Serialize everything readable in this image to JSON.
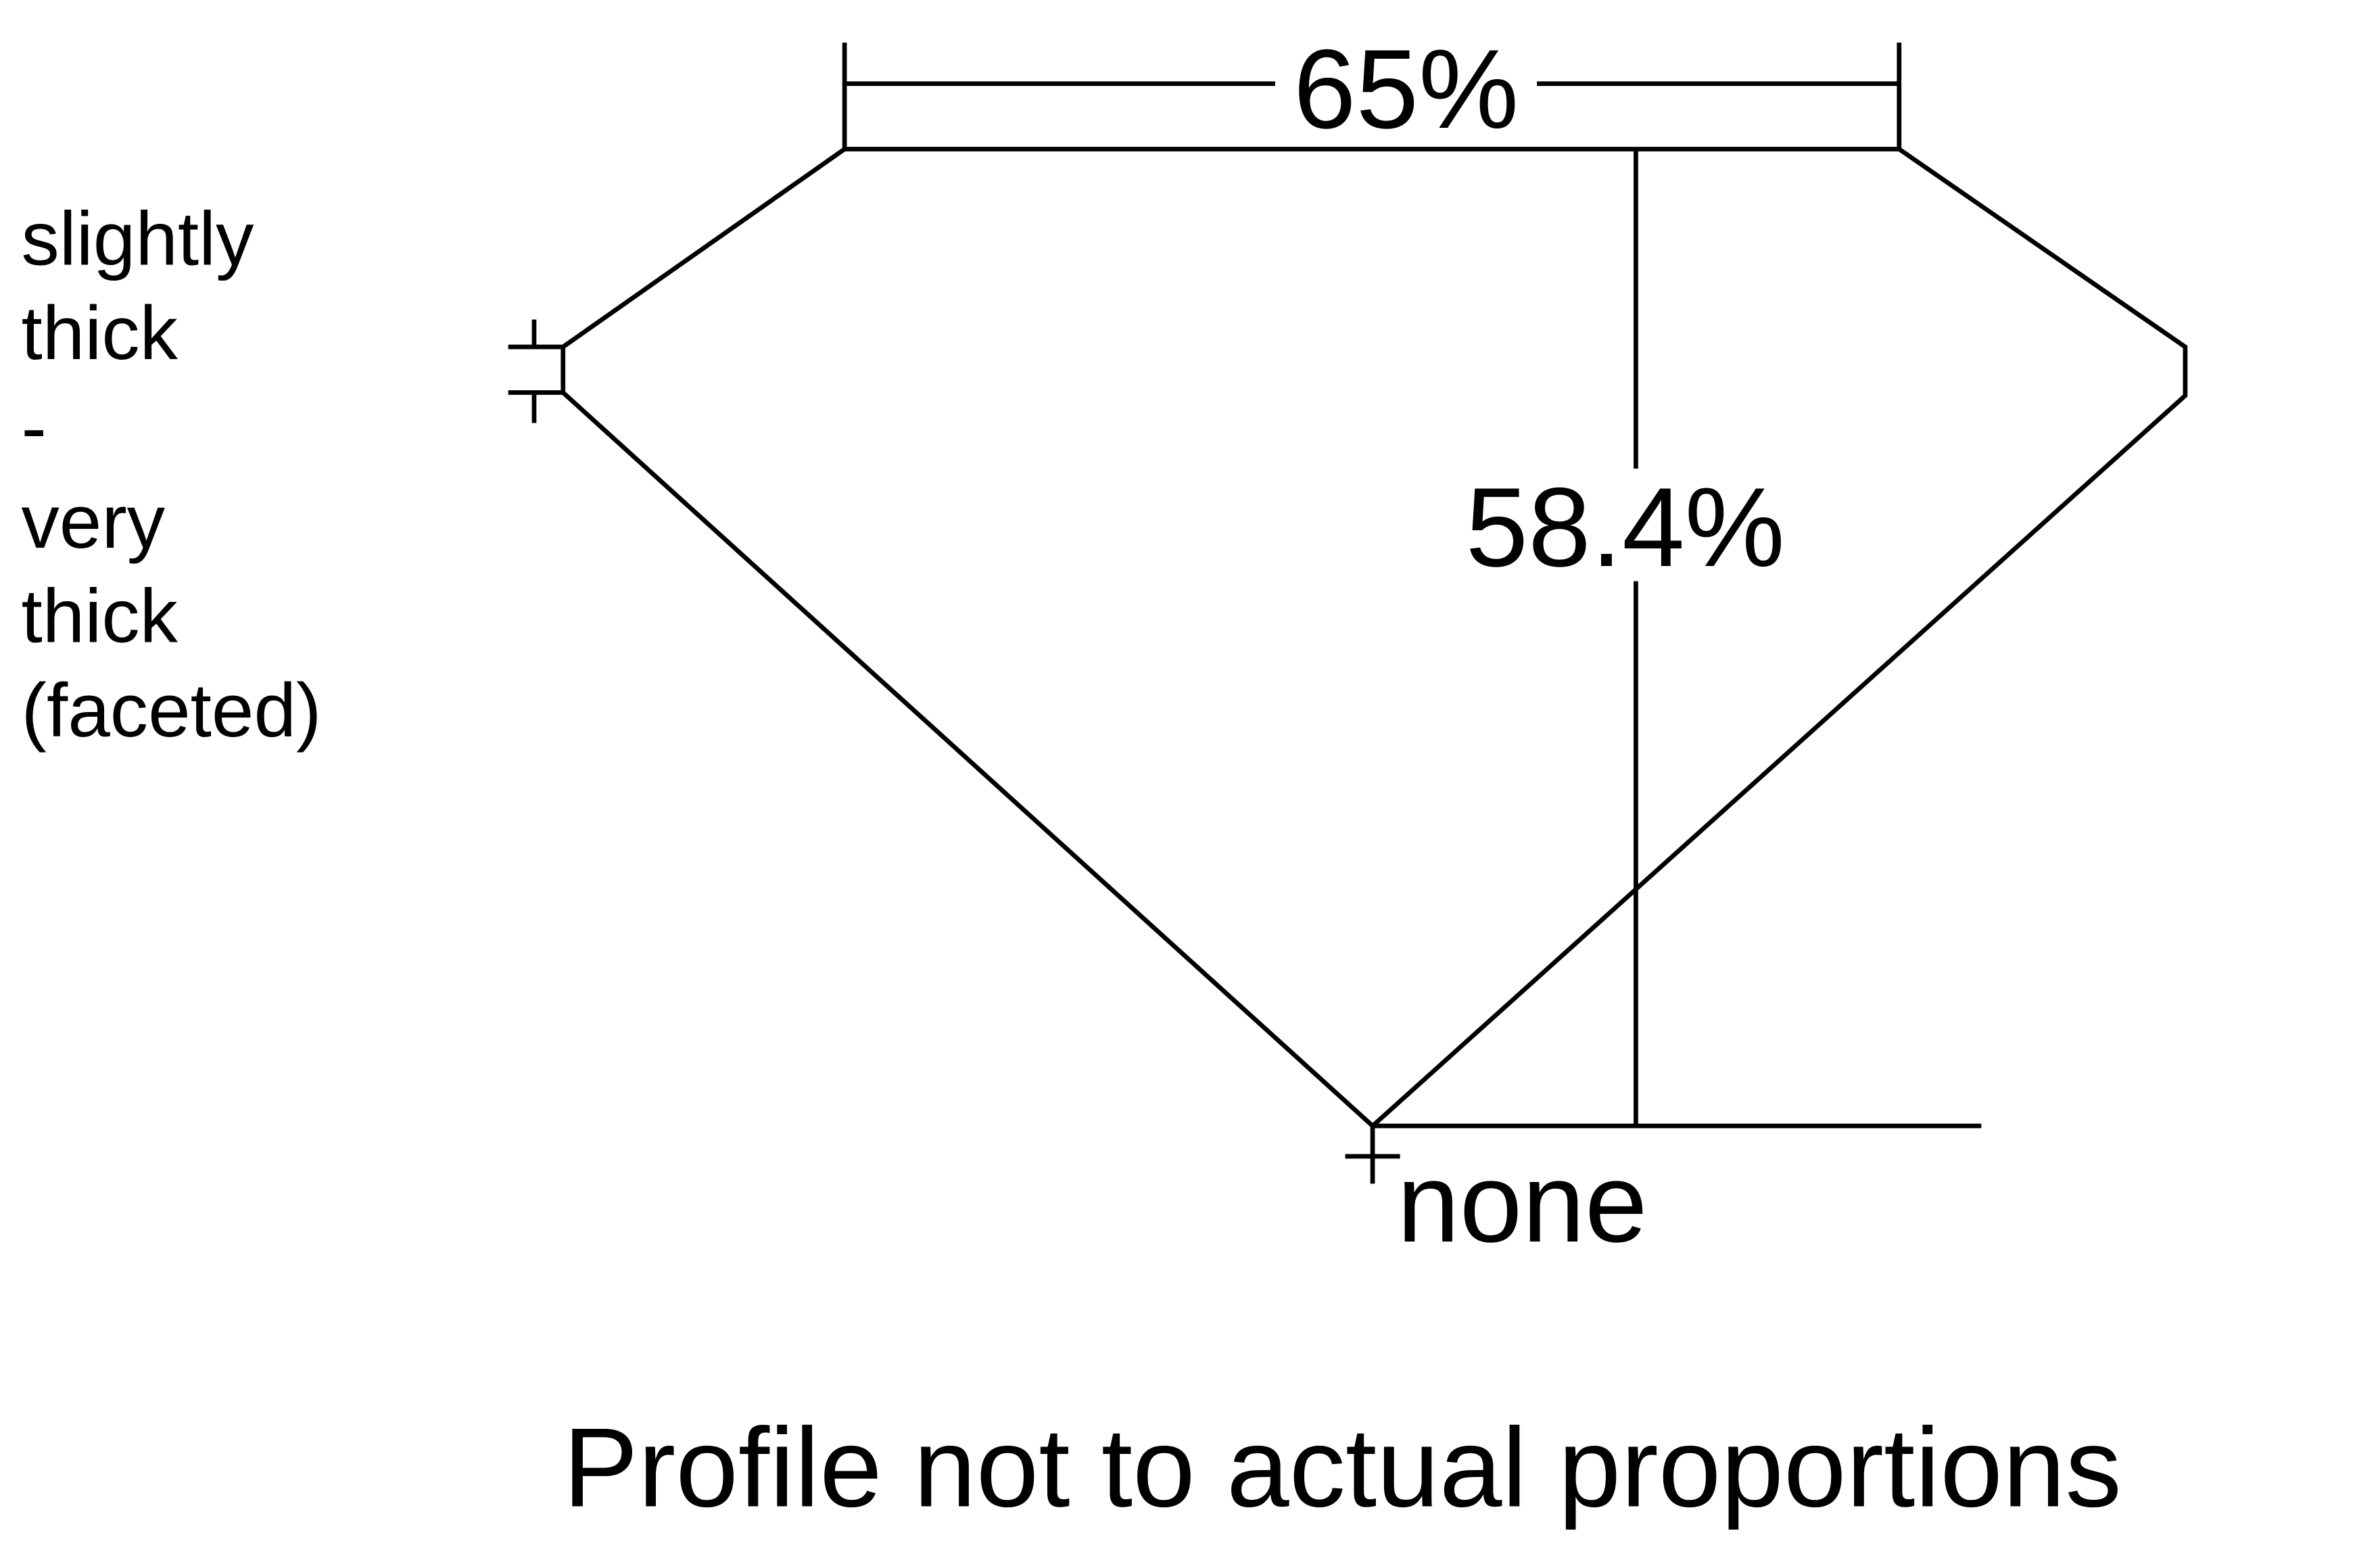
{
  "diagram": {
    "table_width_label": "65%",
    "total_depth_label": "58.4%",
    "girdle_label_lines": [
      "slightly",
      "thick",
      "-",
      "very",
      "thick",
      "(faceted)"
    ],
    "culet_label": "none",
    "footnote": "Profile not to actual proportions"
  },
  "colors": {
    "line": "#000000",
    "background": "#ffffff"
  }
}
